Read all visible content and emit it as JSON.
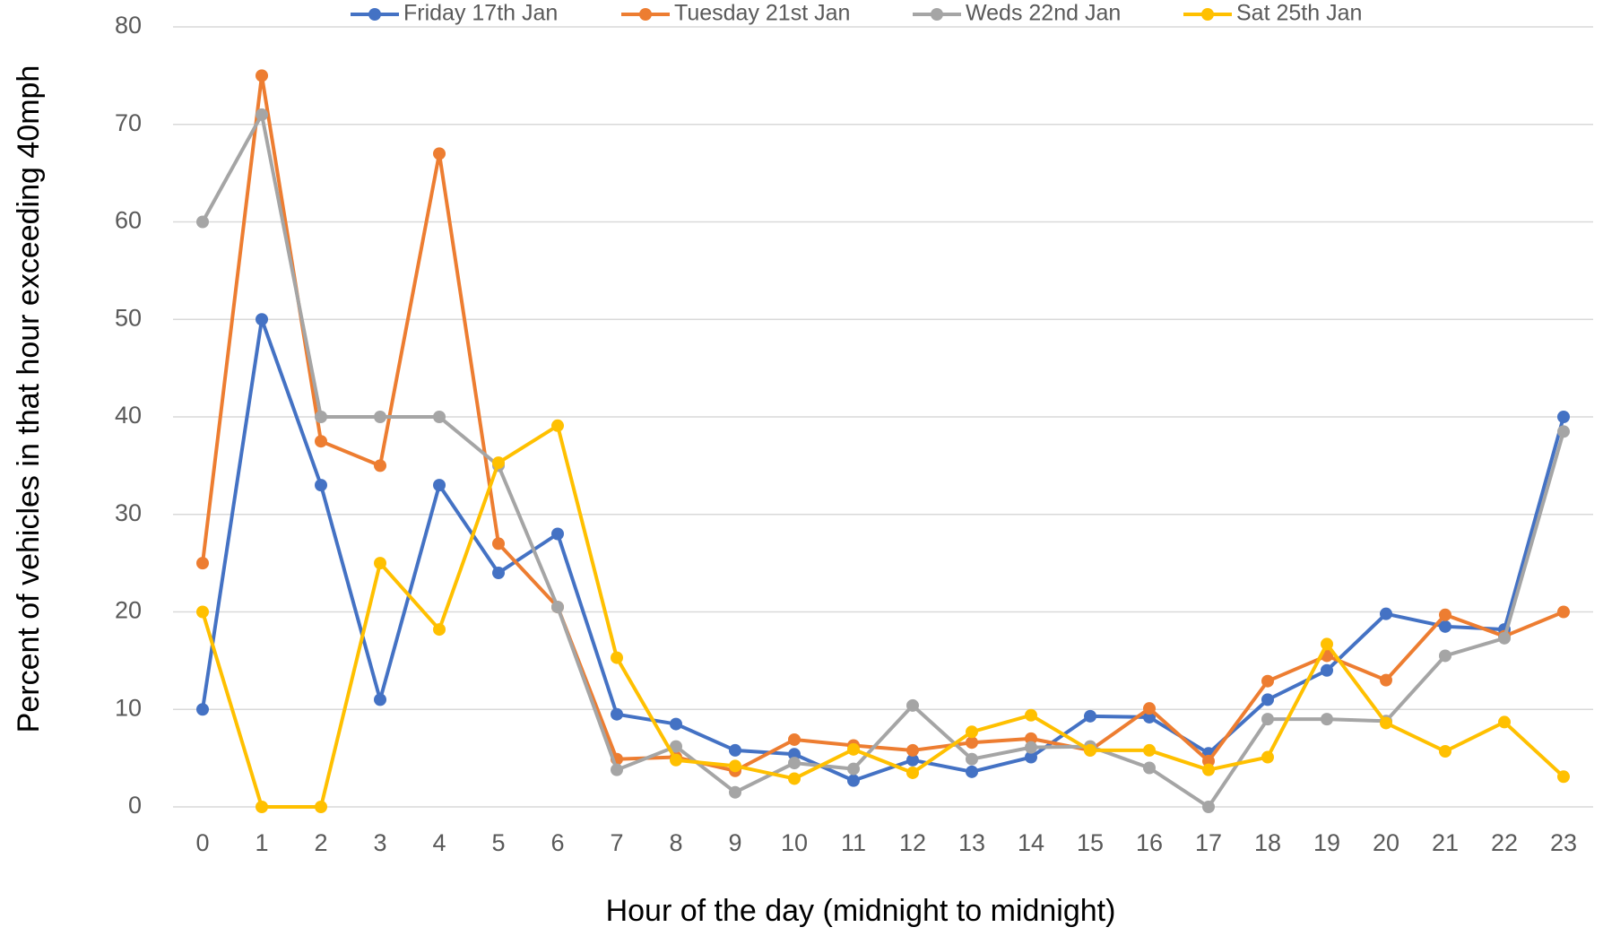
{
  "chart_data": {
    "type": "line",
    "x_label": "Hour of the day (midnight to midnight)",
    "y_label": "Percent of vehicles in that hour exceeding 40mph",
    "categories": [
      "0",
      "1",
      "2",
      "3",
      "4",
      "5",
      "6",
      "7",
      "8",
      "9",
      "10",
      "11",
      "12",
      "13",
      "14",
      "15",
      "16",
      "17",
      "18",
      "19",
      "20",
      "21",
      "22",
      "23"
    ],
    "series": [
      {
        "name": "Friday 17th Jan",
        "color": "#4472c4",
        "values": [
          10,
          50,
          33,
          11,
          33,
          24,
          28,
          9.5,
          8.5,
          5.8,
          5.4,
          2.7,
          4.8,
          3.6,
          5.1,
          9.3,
          9.2,
          5.5,
          11,
          14,
          19.8,
          18.5,
          18.2,
          40
        ]
      },
      {
        "name": "Tuesday 21st Jan",
        "color": "#ed7d31",
        "values": [
          25,
          75,
          37.5,
          35,
          67,
          27,
          20.5,
          4.9,
          5.1,
          3.7,
          6.9,
          6.3,
          5.8,
          6.6,
          7,
          5.8,
          10.1,
          4.7,
          12.9,
          15.5,
          13,
          19.7,
          17.5,
          20
        ]
      },
      {
        "name": "Weds 22nd Jan",
        "color": "#a5a5a5",
        "values": [
          60,
          71,
          40,
          40,
          40,
          35,
          20.5,
          3.8,
          6.2,
          1.5,
          4.5,
          3.9,
          10.4,
          4.9,
          6.1,
          6.2,
          4,
          0,
          9,
          9,
          8.8,
          15.5,
          17.3,
          38.5
        ]
      },
      {
        "name": "Sat 25th Jan",
        "color": "#ffc000",
        "values": [
          20,
          0,
          0,
          25,
          18.2,
          35.3,
          39.1,
          15.3,
          4.8,
          4.2,
          2.9,
          5.9,
          3.5,
          7.7,
          9.4,
          5.8,
          5.8,
          3.8,
          5.1,
          16.7,
          8.6,
          5.7,
          8.7,
          3.1
        ]
      }
    ],
    "ylim": [
      0,
      80
    ],
    "yticks": [
      0,
      10,
      20,
      30,
      40,
      50,
      60,
      70,
      80
    ],
    "grid": true,
    "legend": "top"
  }
}
